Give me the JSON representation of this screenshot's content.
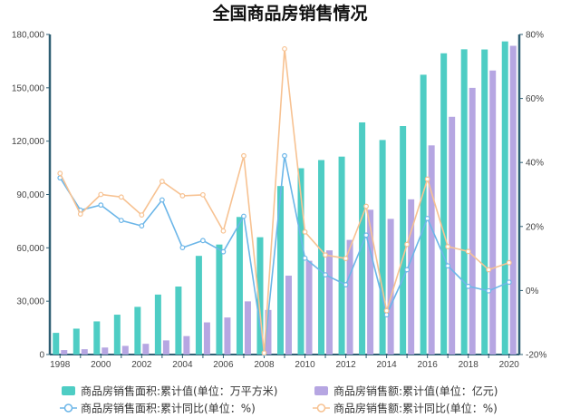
{
  "chart_data": {
    "type": "bar",
    "title": "全国商品房销售情况",
    "categories": [
      "1998",
      "1999",
      "2000",
      "2001",
      "2002",
      "2003",
      "2004",
      "2005",
      "2006",
      "2007",
      "2008",
      "2009",
      "2010",
      "2011",
      "2012",
      "2013",
      "2014",
      "2015",
      "2016",
      "2017",
      "2018",
      "2019",
      "2020"
    ],
    "x_tick_labels": [
      "1998",
      "2000",
      "2002",
      "2004",
      "2006",
      "2008",
      "2010",
      "2012",
      "2014",
      "2016",
      "2018",
      "2020"
    ],
    "y_left": {
      "min": 0,
      "max": 180000,
      "ticks": [
        "0",
        "30,000",
        "60,000",
        "90,000",
        "120,000",
        "150,000",
        "180,000"
      ]
    },
    "y_right": {
      "min": -20,
      "max": 80,
      "ticks": [
        "-20%",
        "0%",
        "20%",
        "40%",
        "60%",
        "80%"
      ]
    },
    "series": [
      {
        "name": "商品房销售面积:累计值(单位：万平方米)",
        "type": "bar",
        "axis": "left",
        "color": "#4ecdc4",
        "values": [
          12185,
          14557,
          18637,
          22412,
          26808,
          33718,
          38232,
          55486,
          61857,
          77355,
          65969,
          94755,
          104765,
          109367,
          111304,
          130551,
          120649,
          128495,
          157349,
          169408,
          171654,
          171558,
          176086
        ]
      },
      {
        "name": "商品房销售额:累计值(单位：亿元)",
        "type": "bar",
        "axis": "left",
        "color": "#b6a6e2",
        "values": [
          2513,
          2988,
          3935,
          4863,
          6032,
          7955,
          10376,
          18080,
          20826,
          29889,
          25068,
          44355,
          52721,
          58589,
          64456,
          81428,
          76292,
          87281,
          117627,
          133701,
          149973,
          159725,
          173613
        ]
      },
      {
        "name": "商品房销售面积:累计同比(单位：%)",
        "type": "line",
        "axis": "right",
        "color": "#6cb6e8",
        "values": [
          35.2,
          25.1,
          26.7,
          21.9,
          20.2,
          28.3,
          13.4,
          15.6,
          12.1,
          23.2,
          -19.7,
          42.1,
          10.1,
          4.9,
          1.8,
          17.3,
          -7.6,
          6.5,
          22.5,
          7.7,
          1.3,
          -0.1,
          2.6
        ]
      },
      {
        "name": "商品房销售额:累计同比(单位：%)",
        "type": "line",
        "axis": "right",
        "color": "#f7c292",
        "values": [
          36.6,
          23.9,
          30.0,
          29.2,
          23.6,
          34.1,
          29.6,
          29.9,
          18.6,
          42.1,
          -19.5,
          75.5,
          18.3,
          11.1,
          10.0,
          26.3,
          -6.3,
          14.4,
          34.8,
          13.7,
          12.2,
          6.5,
          8.7
        ]
      }
    ],
    "legend_position": "bottom",
    "grid": false
  }
}
